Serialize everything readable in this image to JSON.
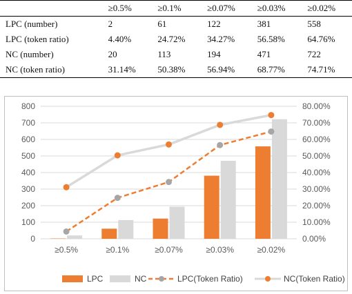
{
  "table": {
    "columns": [
      "",
      "≥0.5%",
      "≥0.1%",
      "≥0.07%",
      "≥0.03%",
      "≥0.02%"
    ],
    "rows": [
      {
        "label": "LPC (number)",
        "cells": [
          "2",
          "61",
          "122",
          "381",
          "558"
        ]
      },
      {
        "label": "LPC (token ratio)",
        "cells": [
          "4.40%",
          "24.72%",
          "34.27%",
          "56.58%",
          "64.76%"
        ]
      },
      {
        "label": "NC (number)",
        "cells": [
          "20",
          "113",
          "194",
          "471",
          "722"
        ]
      },
      {
        "label": "NC (token ratio)",
        "cells": [
          "31.14%",
          "50.38%",
          "56.94%",
          "68.77%",
          "74.71%"
        ]
      }
    ]
  },
  "colors": {
    "lpc": "#ED7D31",
    "nc": "#D9D9D9",
    "grid": "#D9D9D9"
  },
  "chart_data": {
    "type": "bar",
    "categories": [
      "≥0.5%",
      "≥0.1%",
      "≥0.07%",
      "≥0.03%",
      "≥0.02%"
    ],
    "series": [
      {
        "name": "LPC",
        "kind": "bar",
        "axis": "left",
        "values": [
          2,
          61,
          122,
          381,
          558
        ]
      },
      {
        "name": "NC",
        "kind": "bar",
        "axis": "left",
        "values": [
          20,
          113,
          194,
          471,
          722
        ]
      },
      {
        "name": "LPC(Token Ratio)",
        "kind": "line-dashed",
        "axis": "right",
        "values": [
          4.4,
          24.72,
          34.27,
          56.58,
          64.76
        ]
      },
      {
        "name": "NC(Token Ratio)",
        "kind": "line",
        "axis": "right",
        "values": [
          31.14,
          50.38,
          56.94,
          68.77,
          74.71
        ]
      }
    ],
    "ylim": [
      0,
      800
    ],
    "y_ticks": [
      "0",
      "100",
      "200",
      "300",
      "400",
      "500",
      "600",
      "700",
      "800"
    ],
    "y2lim": [
      0,
      80
    ],
    "y2_ticks": [
      "0.00%",
      "10.00%",
      "20.00%",
      "30.00%",
      "40.00%",
      "50.00%",
      "60.00%",
      "70.00%",
      "80.00%"
    ],
    "grid": true,
    "legend_position": "bottom"
  }
}
